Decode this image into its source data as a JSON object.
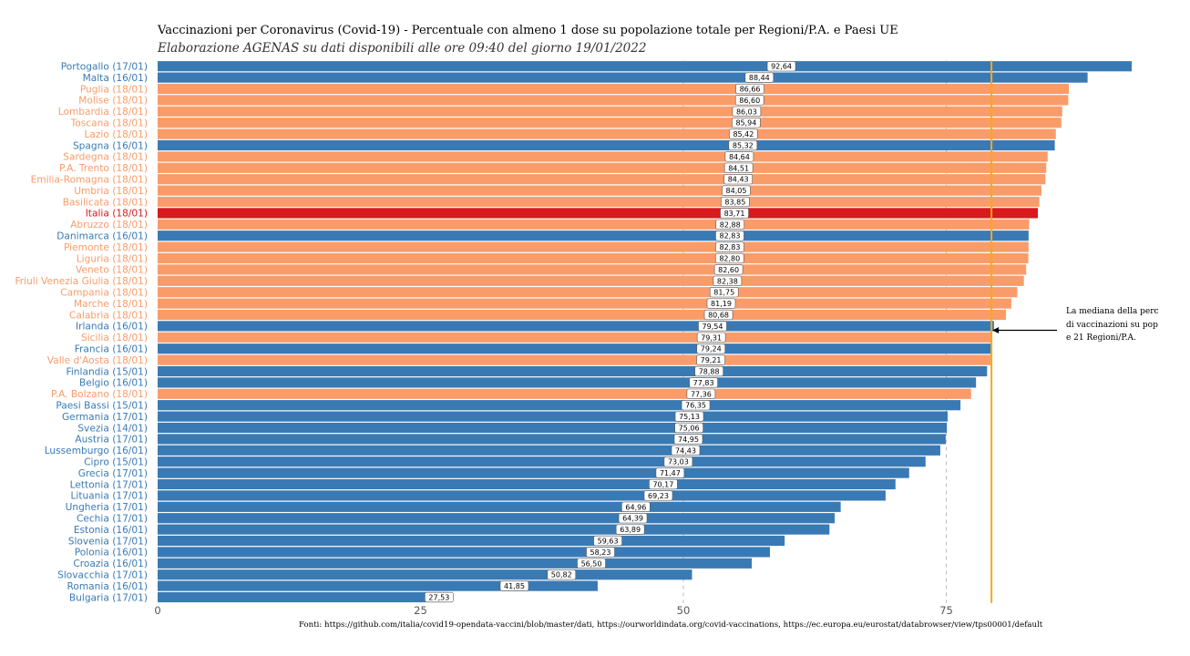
{
  "chart_data": {
    "type": "bar",
    "orientation": "horizontal",
    "title": "Vaccinazioni per Coronavirus (Covid-19) - Percentuale con almeno 1 dose su popolazione totale per Regioni/P.A. e Paesi UE",
    "subtitle": "Elaborazione AGENAS su dati disponibili alle ore 09:40  del giorno  19/01/2022",
    "source": "Fonti: https://github.com/italia/covid19-opendata-vaccini/blob/master/dati, https://ourworldindata.org/covid-vaccinations, https://ec.europa.eu/eurostat/databrowser/view/tps00001/default",
    "annotation": [
      "La mediana della perc",
      "di vaccinazioni su pop",
      "e 21 Regioni/P.A."
    ],
    "median_value": 79.3,
    "xlim": [
      0,
      93.5
    ],
    "x_ticks": [
      "0",
      "25",
      "50",
      "75"
    ],
    "grid": "dashed vertical lines at 50 and 75",
    "colors": {
      "paese_ue": "#3a7ab4",
      "regione": "#fa9c69",
      "italia": "#d8191d",
      "median_line": "#f5a81c"
    },
    "bars": [
      {
        "label": "Portogallo (17/01)",
        "value_label": "92,64",
        "value": 92.64,
        "group": "paese_ue"
      },
      {
        "label": "Malta (16/01)",
        "value_label": "88,44",
        "value": 88.44,
        "group": "paese_ue"
      },
      {
        "label": "Puglia (18/01)",
        "value_label": "86,66",
        "value": 86.66,
        "group": "regione"
      },
      {
        "label": "Molise (18/01)",
        "value_label": "86,60",
        "value": 86.6,
        "group": "regione"
      },
      {
        "label": "Lombardia (18/01)",
        "value_label": "86,03",
        "value": 86.03,
        "group": "regione"
      },
      {
        "label": "Toscana (18/01)",
        "value_label": "85,94",
        "value": 85.94,
        "group": "regione"
      },
      {
        "label": "Lazio (18/01)",
        "value_label": "85,42",
        "value": 85.42,
        "group": "regione"
      },
      {
        "label": "Spagna (16/01)",
        "value_label": "85,32",
        "value": 85.32,
        "group": "paese_ue"
      },
      {
        "label": "Sardegna (18/01)",
        "value_label": "84,64",
        "value": 84.64,
        "group": "regione"
      },
      {
        "label": "P.A. Trento (18/01)",
        "value_label": "84,51",
        "value": 84.51,
        "group": "regione"
      },
      {
        "label": "Emilia-Romagna (18/01)",
        "value_label": "84,43",
        "value": 84.43,
        "group": "regione"
      },
      {
        "label": "Umbria (18/01)",
        "value_label": "84,05",
        "value": 84.05,
        "group": "regione"
      },
      {
        "label": "Basilicata (18/01)",
        "value_label": "83,85",
        "value": 83.85,
        "group": "regione"
      },
      {
        "label": "Italia (18/01)",
        "value_label": "83,71",
        "value": 83.71,
        "group": "italia"
      },
      {
        "label": "Abruzzo (18/01)",
        "value_label": "82,88",
        "value": 82.88,
        "group": "regione"
      },
      {
        "label": "Danimarca (16/01)",
        "value_label": "82,83",
        "value": 82.83,
        "group": "paese_ue"
      },
      {
        "label": "Piemonte (18/01)",
        "value_label": "82,83",
        "value": 82.83,
        "group": "regione"
      },
      {
        "label": "Liguria (18/01)",
        "value_label": "82,80",
        "value": 82.8,
        "group": "regione"
      },
      {
        "label": "Veneto (18/01)",
        "value_label": "82,60",
        "value": 82.6,
        "group": "regione"
      },
      {
        "label": "Friuli Venezia Giulia (18/01)",
        "value_label": "82,38",
        "value": 82.38,
        "group": "regione"
      },
      {
        "label": "Campania (18/01)",
        "value_label": "81,75",
        "value": 81.75,
        "group": "regione"
      },
      {
        "label": "Marche (18/01)",
        "value_label": "81,19",
        "value": 81.19,
        "group": "regione"
      },
      {
        "label": "Calabria (18/01)",
        "value_label": "80,68",
        "value": 80.68,
        "group": "regione"
      },
      {
        "label": "Irlanda (16/01)",
        "value_label": "79,54",
        "value": 79.54,
        "group": "paese_ue"
      },
      {
        "label": "Sicilia (18/01)",
        "value_label": "79,31",
        "value": 79.31,
        "group": "regione"
      },
      {
        "label": "Francia (16/01)",
        "value_label": "79,24",
        "value": 79.24,
        "group": "paese_ue"
      },
      {
        "label": "Valle d'Aosta (18/01)",
        "value_label": "79,21",
        "value": 79.21,
        "group": "regione"
      },
      {
        "label": "Finlandia (15/01)",
        "value_label": "78,88",
        "value": 78.88,
        "group": "paese_ue"
      },
      {
        "label": "Belgio (16/01)",
        "value_label": "77,83",
        "value": 77.83,
        "group": "paese_ue"
      },
      {
        "label": "P.A. Bolzano (18/01)",
        "value_label": "77,36",
        "value": 77.36,
        "group": "regione"
      },
      {
        "label": "Paesi Bassi (15/01)",
        "value_label": "76,35",
        "value": 76.35,
        "group": "paese_ue"
      },
      {
        "label": "Germania (17/01)",
        "value_label": "75,13",
        "value": 75.13,
        "group": "paese_ue"
      },
      {
        "label": "Svezia (14/01)",
        "value_label": "75,06",
        "value": 75.06,
        "group": "paese_ue"
      },
      {
        "label": "Austria (17/01)",
        "value_label": "74,95",
        "value": 74.95,
        "group": "paese_ue"
      },
      {
        "label": "Lussemburgo (16/01)",
        "value_label": "74,43",
        "value": 74.43,
        "group": "paese_ue"
      },
      {
        "label": "Cipro (15/01)",
        "value_label": "73,03",
        "value": 73.03,
        "group": "paese_ue"
      },
      {
        "label": "Grecia (17/01)",
        "value_label": "71,47",
        "value": 71.47,
        "group": "paese_ue"
      },
      {
        "label": "Lettonia (17/01)",
        "value_label": "70,17",
        "value": 70.17,
        "group": "paese_ue"
      },
      {
        "label": "Lituania (17/01)",
        "value_label": "69,23",
        "value": 69.23,
        "group": "paese_ue"
      },
      {
        "label": "Ungheria (17/01)",
        "value_label": "64,96",
        "value": 64.96,
        "group": "paese_ue"
      },
      {
        "label": "Cechia (17/01)",
        "value_label": "64,39",
        "value": 64.39,
        "group": "paese_ue"
      },
      {
        "label": "Estonia (16/01)",
        "value_label": "63,89",
        "value": 63.89,
        "group": "paese_ue"
      },
      {
        "label": "Slovenia (17/01)",
        "value_label": "59,63",
        "value": 59.63,
        "group": "paese_ue"
      },
      {
        "label": "Polonia (16/01)",
        "value_label": "58,23",
        "value": 58.23,
        "group": "paese_ue"
      },
      {
        "label": "Croazia (16/01)",
        "value_label": "56,50",
        "value": 56.5,
        "group": "paese_ue"
      },
      {
        "label": "Slovacchia (17/01)",
        "value_label": "50,82",
        "value": 50.82,
        "group": "paese_ue"
      },
      {
        "label": "Romania (16/01)",
        "value_label": "41,85",
        "value": 41.85,
        "group": "paese_ue"
      },
      {
        "label": "Bulgaria (17/01)",
        "value_label": "27,53",
        "value": 27.53,
        "group": "paese_ue"
      }
    ]
  }
}
